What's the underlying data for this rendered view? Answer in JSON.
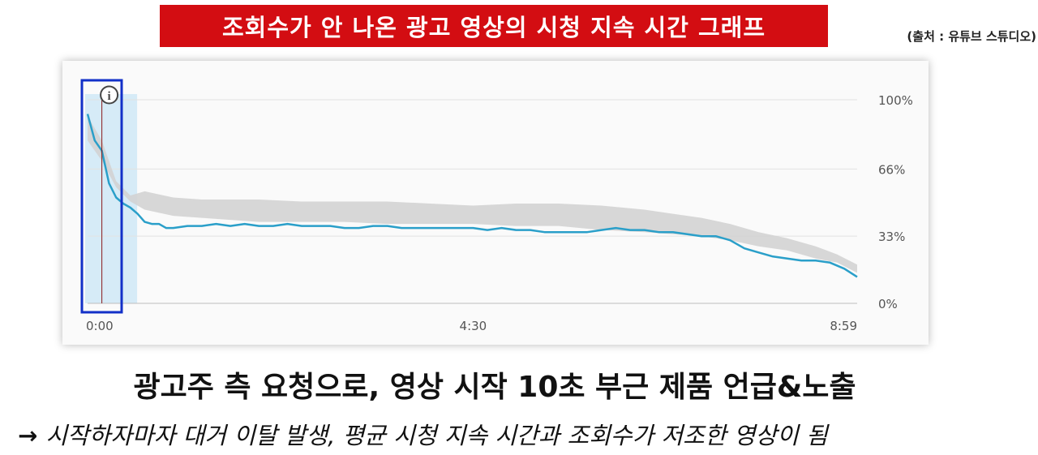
{
  "header": {
    "title": "조회수가 안 나온 광고 영상의 시청 지속 시간 그래프",
    "source": "(출처 : 유튜브 스튜디오)"
  },
  "footer": {
    "headline": "광고주 측 요청으로, 영상 시작 10초 부근 제품 언급&노출",
    "arrow": "→",
    "subline": "시작하자마자 대거 이탈 발생, 평균 시청 지속 시간과 조회수가 저조한 영상이 됨"
  },
  "colors": {
    "banner": "#d30d12",
    "retention_line": "#2a9fc9",
    "typical_band": "#d3d3d3",
    "intro_highlight": "#d6ebf7",
    "marker_line": "#8b1a1a",
    "highlight_box": "#1230c8"
  },
  "chart_data": {
    "type": "line",
    "x_unit": "seconds",
    "x_ticks": [
      {
        "value": 0,
        "label": "0:00"
      },
      {
        "value": 270,
        "label": "4:30"
      },
      {
        "value": 539,
        "label": "8:59"
      }
    ],
    "y_ticks": [
      {
        "value": 0,
        "label": "0%"
      },
      {
        "value": 33,
        "label": "33%"
      },
      {
        "value": 66,
        "label": "66%"
      },
      {
        "value": 100,
        "label": "100%"
      }
    ],
    "xlim": [
      0,
      539
    ],
    "ylim": [
      0,
      100
    ],
    "grid": true,
    "marker_time": 10,
    "intro_range": [
      0,
      33
    ],
    "series": [
      {
        "role": "audience_retention",
        "x": [
          0,
          5,
          10,
          15,
          20,
          25,
          30,
          35,
          40,
          45,
          50,
          55,
          60,
          70,
          80,
          90,
          100,
          110,
          120,
          130,
          140,
          150,
          160,
          170,
          180,
          190,
          200,
          210,
          220,
          230,
          240,
          250,
          260,
          270,
          280,
          290,
          300,
          310,
          320,
          330,
          340,
          350,
          360,
          370,
          380,
          390,
          400,
          410,
          420,
          430,
          440,
          450,
          460,
          470,
          480,
          490,
          500,
          510,
          520,
          530,
          539
        ],
        "y": [
          93,
          80,
          75,
          59,
          52,
          49,
          47,
          44,
          40,
          39,
          39,
          37,
          37,
          38,
          38,
          39,
          38,
          39,
          38,
          38,
          39,
          38,
          38,
          38,
          37,
          37,
          38,
          38,
          37,
          37,
          37,
          37,
          37,
          37,
          36,
          37,
          36,
          36,
          35,
          35,
          35,
          35,
          36,
          37,
          36,
          36,
          35,
          35,
          34,
          33,
          33,
          31,
          27,
          25,
          23,
          22,
          21,
          21,
          20,
          17,
          13
        ]
      }
    ],
    "typical_band": {
      "x": [
        0,
        10,
        20,
        30,
        40,
        60,
        80,
        100,
        120,
        150,
        180,
        210,
        240,
        270,
        300,
        330,
        360,
        390,
        410,
        430,
        450,
        470,
        490,
        510,
        525,
        539
      ],
      "low": [
        80,
        70,
        57,
        50,
        46,
        43,
        42,
        41,
        40,
        40,
        40,
        39,
        39,
        39,
        38,
        38,
        36,
        35,
        34,
        33,
        31,
        28,
        26,
        22,
        20,
        15
      ],
      "high": [
        92,
        80,
        60,
        53,
        55,
        52,
        51,
        51,
        51,
        50,
        50,
        50,
        49,
        48,
        49,
        49,
        48,
        46,
        44,
        42,
        39,
        35,
        32,
        28,
        24,
        19
      ]
    }
  }
}
